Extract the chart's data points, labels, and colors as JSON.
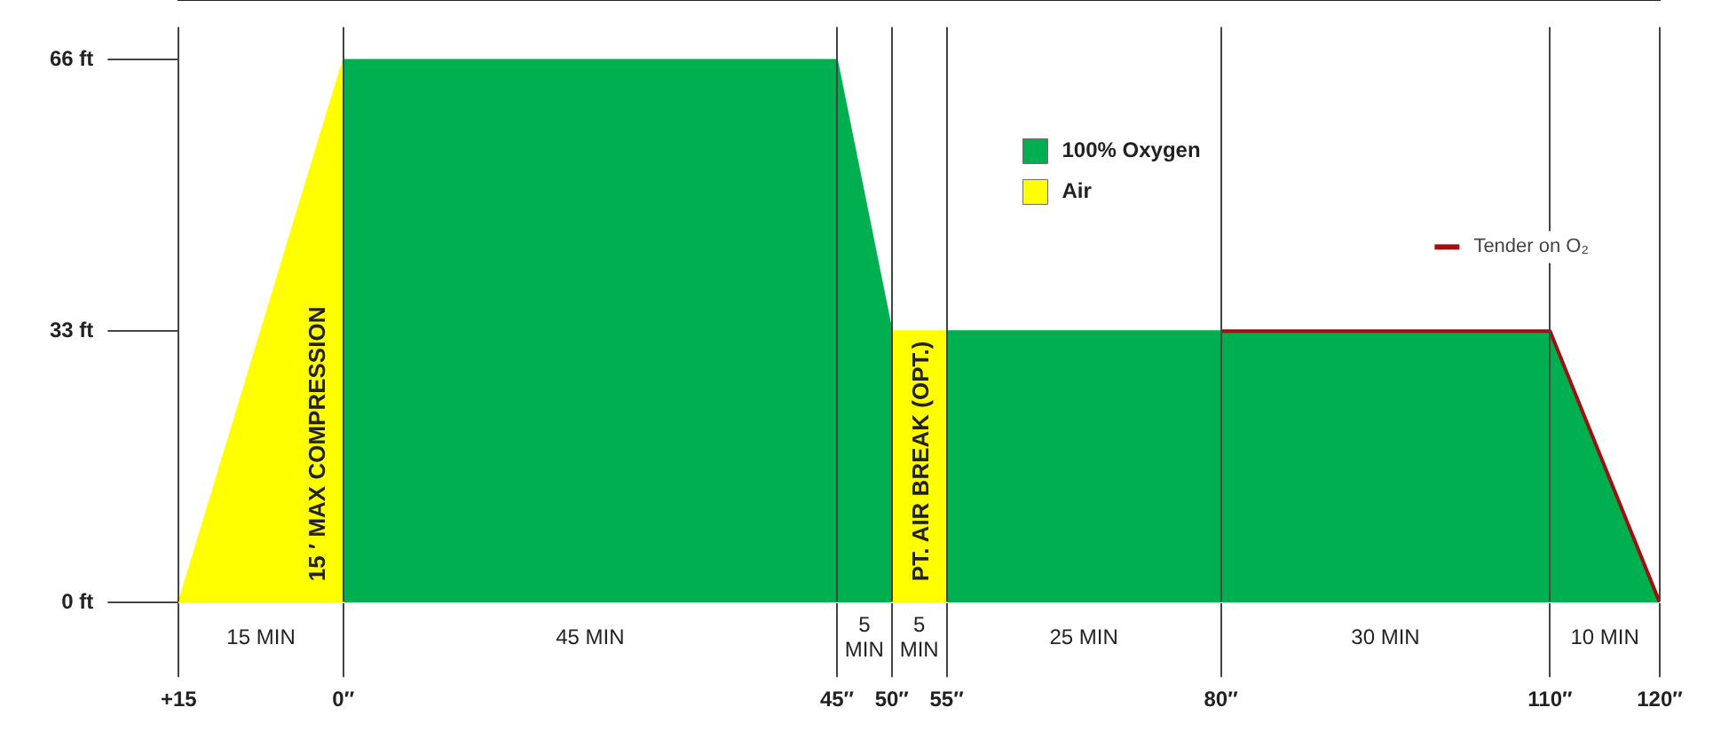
{
  "chart_data": {
    "type": "area",
    "xlim": [
      -15,
      120
    ],
    "ylim": [
      0,
      70
    ],
    "xticks": [
      {
        "value": -15,
        "label": "+15"
      },
      {
        "value": 0,
        "label": "0″"
      },
      {
        "value": 45,
        "label": "45″"
      },
      {
        "value": 50,
        "label": "50″"
      },
      {
        "value": 55,
        "label": "55″"
      },
      {
        "value": 80,
        "label": "80″"
      },
      {
        "value": 110,
        "label": "110″"
      },
      {
        "value": 120,
        "label": "120″"
      }
    ],
    "yticks": [
      {
        "value": 0,
        "label": "0 ft"
      },
      {
        "value": 33,
        "label": "33 ft"
      },
      {
        "value": 66,
        "label": "66 ft"
      }
    ],
    "grid": "x",
    "legend": "top right",
    "series": [
      {
        "name": "100% Oxygen",
        "color": "#00b050",
        "x": [
          0,
          45,
          50,
          52.5,
          55,
          110,
          120
        ],
        "values": [
          66,
          66,
          33,
          null,
          33,
          33,
          0
        ]
      },
      {
        "name": "Air",
        "color": "#ffff00",
        "x": [
          -15,
          0,
          25,
          50,
          55
        ],
        "values": [
          0,
          66,
          null,
          33,
          33
        ]
      },
      {
        "name": "Tender on O₂",
        "type": "line",
        "color": "#a01010",
        "x": [
          80,
          110,
          120
        ],
        "values": [
          33,
          33,
          0
        ]
      }
    ],
    "annotations": [
      "15 ′ MAX COMPRESSION",
      "PT. AIR BREAK (OPT.)",
      "15 MIN",
      "45 MIN",
      "5\nMIN",
      "5\nMIN",
      "25 MIN",
      "30 MIN",
      "10 MIN"
    ]
  }
}
